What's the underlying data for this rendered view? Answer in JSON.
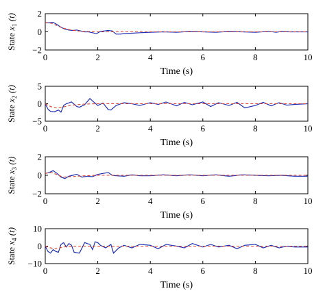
{
  "chart_data": [
    {
      "type": "line",
      "ylabel_prefix": "State x",
      "ylabel_sub": "1",
      "ylabel_suffix": " (t)",
      "xlabel": "Time (s)",
      "xlim": [
        0,
        10
      ],
      "ylim": [
        -2,
        2
      ],
      "xticks": [
        0,
        2,
        4,
        6,
        8,
        10
      ],
      "yticks": [
        -2,
        0,
        2
      ],
      "series": [
        {
          "style": "solid",
          "color": "#1f2fb3",
          "x": [
            0,
            0.15,
            0.3,
            0.45,
            0.6,
            0.75,
            0.9,
            1.05,
            1.2,
            1.35,
            1.5,
            1.65,
            1.8,
            1.95,
            2.1,
            2.25,
            2.4,
            2.55,
            2.7,
            2.85,
            3.0,
            3.3,
            3.6,
            4,
            4.5,
            5,
            5.5,
            6,
            6.5,
            7,
            7.5,
            8,
            8.5,
            8.8,
            9,
            9.3,
            9.6,
            10
          ],
          "y": [
            1.0,
            1.0,
            1.05,
            0.8,
            0.5,
            0.3,
            0.2,
            0.15,
            0.2,
            0.1,
            0.0,
            0.0,
            -0.1,
            -0.2,
            0.05,
            0.1,
            0.15,
            0.1,
            -0.25,
            -0.25,
            -0.2,
            -0.15,
            -0.1,
            -0.05,
            0.0,
            -0.05,
            0.05,
            0.0,
            -0.05,
            0.05,
            0.0,
            -0.05,
            0.05,
            -0.05,
            0.05,
            0.0,
            0.0,
            0.0
          ]
        },
        {
          "style": "dashed",
          "color": "#e0402a",
          "x": [
            0,
            0.15,
            0.3,
            0.5,
            0.7,
            0.9,
            1.2,
            1.5,
            2.0,
            2.5,
            3,
            4,
            5,
            6,
            7,
            8,
            9,
            10
          ],
          "y": [
            1.0,
            1.0,
            0.9,
            0.6,
            0.4,
            0.25,
            0.1,
            0.05,
            0.0,
            0.0,
            0.0,
            0.0,
            0.0,
            0.0,
            0.0,
            0.0,
            0.0,
            0.0
          ]
        }
      ]
    },
    {
      "type": "line",
      "ylabel_prefix": "State x",
      "ylabel_sub": "2",
      "ylabel_suffix": " (t)",
      "xlabel": "Time (s)",
      "xlim": [
        0,
        10
      ],
      "ylim": [
        -5,
        5
      ],
      "xticks": [
        0,
        2,
        4,
        6,
        8,
        10
      ],
      "yticks": [
        -5,
        0,
        5
      ],
      "series": [
        {
          "style": "solid",
          "color": "#1f2fb3",
          "x": [
            0,
            0.1,
            0.2,
            0.35,
            0.5,
            0.6,
            0.7,
            0.8,
            1.0,
            1.2,
            1.3,
            1.5,
            1.7,
            1.8,
            2.0,
            2.2,
            2.4,
            2.5,
            2.7,
            3.0,
            3.3,
            3.6,
            4.0,
            4.3,
            4.6,
            5.0,
            5.3,
            5.6,
            6.0,
            6.3,
            6.6,
            7.0,
            7.3,
            7.6,
            8.0,
            8.3,
            8.6,
            8.9,
            9.2,
            9.5,
            10
          ],
          "y": [
            0.0,
            -1.5,
            -2.2,
            -2.3,
            -1.8,
            -2.4,
            -0.5,
            0.0,
            0.5,
            -0.8,
            -1.0,
            -0.3,
            1.5,
            0.8,
            -0.5,
            0.2,
            -1.7,
            -1.8,
            -0.5,
            0.3,
            0.0,
            -0.5,
            0.3,
            -0.2,
            0.5,
            -0.6,
            0.4,
            -0.3,
            0.5,
            -0.8,
            0.3,
            -0.5,
            0.4,
            -1.2,
            -0.5,
            0.4,
            -0.6,
            0.3,
            -0.4,
            -0.2,
            0.0
          ]
        },
        {
          "style": "dashed",
          "color": "#e0402a",
          "x": [
            0,
            0.2,
            0.4,
            0.7,
            1.0,
            1.5,
            2.0,
            3.0,
            4,
            5,
            6,
            7,
            8,
            9,
            10
          ],
          "y": [
            0.0,
            -0.8,
            -1.2,
            -0.9,
            -0.4,
            -0.1,
            0.0,
            0.0,
            0.0,
            0.0,
            0.0,
            0.0,
            0.0,
            0.0,
            0.0
          ]
        }
      ]
    },
    {
      "type": "line",
      "ylabel_prefix": "State x",
      "ylabel_sub": "3",
      "ylabel_suffix": " (t)",
      "xlabel": "Time (s)",
      "xlim": [
        0,
        10
      ],
      "ylim": [
        -2,
        2
      ],
      "xticks": [
        0,
        2,
        4,
        6,
        8,
        10
      ],
      "yticks": [
        -2,
        0,
        2
      ],
      "series": [
        {
          "style": "solid",
          "color": "#1f2fb3",
          "x": [
            0,
            0.15,
            0.3,
            0.45,
            0.6,
            0.75,
            0.9,
            1.05,
            1.2,
            1.4,
            1.6,
            1.8,
            2.0,
            2.2,
            2.4,
            2.55,
            2.7,
            3.0,
            3.3,
            3.6,
            4.0,
            4.5,
            5.0,
            5.5,
            6.0,
            6.5,
            7.0,
            7.5,
            8.0,
            8.5,
            9.0,
            9.5,
            10
          ],
          "y": [
            0.2,
            0.3,
            0.5,
            0.2,
            -0.2,
            -0.35,
            -0.1,
            0.0,
            0.1,
            -0.2,
            -0.1,
            -0.15,
            0.1,
            0.2,
            0.3,
            0.0,
            -0.05,
            -0.1,
            0.05,
            -0.05,
            -0.05,
            0.05,
            -0.05,
            0.05,
            -0.05,
            0.05,
            -0.1,
            0.05,
            0.0,
            -0.05,
            0.0,
            -0.1,
            -0.1
          ]
        },
        {
          "style": "dashed",
          "color": "#e0402a",
          "x": [
            0,
            0.15,
            0.3,
            0.5,
            0.7,
            1.0,
            1.5,
            2.0,
            2.5,
            3.0,
            4,
            5,
            6,
            7,
            8,
            9,
            10
          ],
          "y": [
            0.2,
            0.3,
            0.25,
            0.0,
            -0.2,
            -0.15,
            -0.05,
            0.0,
            0.0,
            0.0,
            0.0,
            0.0,
            0.0,
            0.0,
            0.0,
            0.0,
            0.0
          ]
        }
      ]
    },
    {
      "type": "line",
      "ylabel_prefix": "State x",
      "ylabel_sub": "4",
      "ylabel_suffix": " (t)",
      "xlabel": "Time (s)",
      "xlim": [
        0,
        10
      ],
      "ylim": [
        -10,
        10
      ],
      "xticks": [
        0,
        2,
        4,
        6,
        8,
        10
      ],
      "yticks": [
        -10,
        0,
        10
      ],
      "series": [
        {
          "style": "solid",
          "color": "#1f2fb3",
          "x": [
            0,
            0.1,
            0.2,
            0.3,
            0.4,
            0.5,
            0.6,
            0.7,
            0.8,
            0.9,
            1.0,
            1.1,
            1.3,
            1.4,
            1.5,
            1.7,
            1.8,
            1.9,
            2.0,
            2.1,
            2.3,
            2.5,
            2.6,
            2.8,
            3.0,
            3.3,
            3.6,
            4.0,
            4.3,
            4.6,
            5.0,
            5.3,
            5.6,
            6.0,
            6.3,
            6.6,
            7.0,
            7.3,
            7.6,
            8.0,
            8.3,
            8.6,
            8.9,
            9.2,
            9.5,
            10
          ],
          "y": [
            0.0,
            -3.0,
            -4.0,
            -2.0,
            -3.0,
            -3.5,
            1.0,
            2.0,
            -0.5,
            1.5,
            0.5,
            -3.5,
            -4.0,
            -1.0,
            2.0,
            1.0,
            -2.0,
            2.5,
            2.0,
            0.5,
            -1.0,
            1.0,
            -4.0,
            -1.0,
            0.5,
            -1.0,
            1.0,
            0.5,
            -1.5,
            1.0,
            0.0,
            -1.0,
            1.5,
            -0.5,
            1.0,
            -0.5,
            0.5,
            -1.5,
            0.5,
            1.0,
            -1.0,
            0.5,
            -1.0,
            0.0,
            -0.5,
            -0.5
          ]
        },
        {
          "style": "dashed",
          "color": "#e0402a",
          "x": [
            0,
            0.2,
            0.4,
            0.7,
            1.0,
            1.5,
            2.0,
            2.5,
            3.0,
            4,
            5,
            6,
            7,
            8,
            9,
            10
          ],
          "y": [
            0.0,
            -1.0,
            -1.5,
            -0.5,
            0.0,
            0.0,
            0.0,
            0.0,
            0.0,
            0.0,
            0.0,
            0.0,
            0.0,
            0.0,
            0.0,
            0.0
          ]
        }
      ]
    }
  ]
}
